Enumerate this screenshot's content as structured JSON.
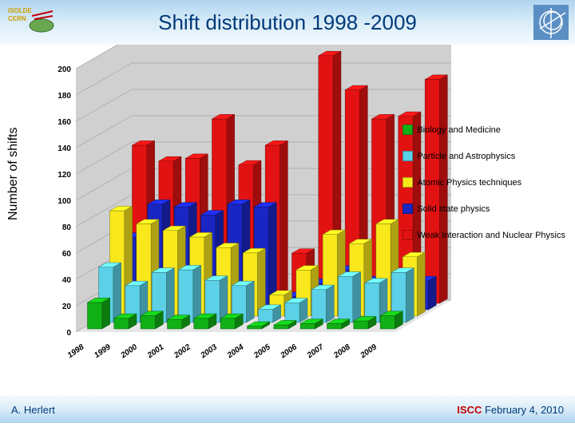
{
  "header": {
    "title": "Shift distribution 1998 -2009",
    "logo_left": {
      "label": "ISOLDE CERN",
      "color": "#d0a000",
      "bg": "#6aa84f"
    },
    "logo_right": {
      "ring_color": "#5b8fc4",
      "text_color": "#ffffff"
    }
  },
  "footer": {
    "left": "A. Herlert",
    "right_bold": "ISCC",
    "right_rest": "February 4, 2010"
  },
  "chart": {
    "type": "3d-bar",
    "ylabel": "Number of shifts",
    "ylim": [
      0,
      200
    ],
    "ytick_step": 20,
    "yticks": [
      0,
      20,
      40,
      60,
      80,
      100,
      120,
      140,
      160,
      180,
      200
    ],
    "categories": [
      "1998",
      "1999",
      "2000",
      "2001",
      "2002",
      "2003",
      "2004",
      "2005",
      "2006",
      "2007",
      "2008",
      "2009"
    ],
    "series": [
      {
        "name": "Biology and Medicine",
        "color": "#11b016",
        "values": [
          20,
          8,
          10,
          7,
          8,
          8,
          2,
          3,
          4,
          4,
          6,
          10
        ]
      },
      {
        "name": "Particle and Astrophysics",
        "color": "#5bd0e6",
        "values": [
          42,
          28,
          38,
          40,
          32,
          28,
          10,
          15,
          25,
          35,
          30,
          38
        ]
      },
      {
        "name": "Atomic Physics techniques",
        "color": "#f8e81c",
        "values": [
          80,
          70,
          65,
          60,
          52,
          48,
          16,
          35,
          62,
          55,
          70,
          45
        ]
      },
      {
        "name": "Solid state physics",
        "color": "#1926c4",
        "values": [
          55,
          80,
          78,
          72,
          80,
          78,
          10,
          20,
          30,
          22,
          18,
          22
        ]
      },
      {
        "name": "Weak Interaction and Nuclear Physics",
        "color": "#e31212",
        "values": [
          120,
          108,
          110,
          140,
          105,
          120,
          38,
          188,
          162,
          140,
          142,
          170
        ]
      }
    ],
    "axis_label_fontsize": 11,
    "tick_fontsize": 10,
    "floor_color": "#e6e6e6",
    "wall_color": "#d0d0d0",
    "grid_color": "#b0b0b0",
    "background_color": "#ffffff",
    "perspective_depth": 14
  }
}
